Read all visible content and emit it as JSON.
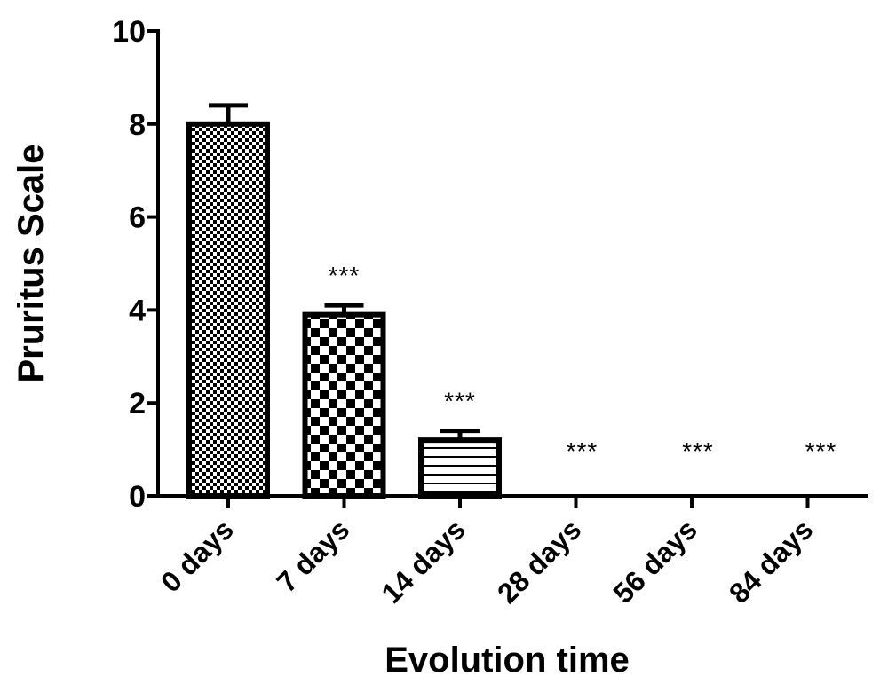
{
  "chart_data": {
    "type": "bar",
    "title": "",
    "xlabel": "Evolution time",
    "ylabel": "Pruritus Scale",
    "ylim": [
      0,
      10
    ],
    "yticks": [
      0,
      2,
      4,
      6,
      8,
      10
    ],
    "grid": false,
    "categories": [
      "0 days",
      "7 days",
      "14 days",
      "28 days",
      "56 days",
      "84 days"
    ],
    "values": [
      8.0,
      3.9,
      1.2,
      0,
      0,
      0
    ],
    "error": [
      0.4,
      0.2,
      0.2,
      0,
      0,
      0
    ],
    "annotations": [
      "",
      "***",
      "***",
      "***",
      "***",
      "***"
    ],
    "patterns": [
      "fine-checker",
      "checker",
      "horizontal-lines",
      "none",
      "none",
      "none"
    ],
    "colors": {
      "bar_fill": "#000000",
      "bar_background": "#ffffff",
      "axis": "#000000"
    }
  }
}
